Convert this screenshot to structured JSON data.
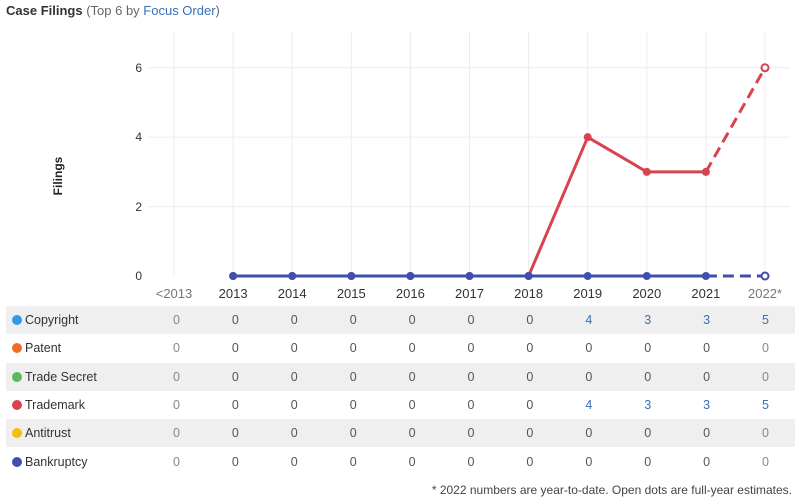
{
  "header": {
    "title": "Case Filings",
    "paren_open": "(Top 6 by ",
    "link": "Focus Order",
    "paren_close": ")"
  },
  "chart_data": {
    "type": "line",
    "ylabel": "Filings",
    "xlabel": "",
    "categories": [
      "<2013",
      "2013",
      "2014",
      "2015",
      "2016",
      "2017",
      "2018",
      "2019",
      "2020",
      "2021",
      "2022*"
    ],
    "ylim": [
      0,
      6.8
    ],
    "yticks": [
      0,
      2,
      4,
      6
    ],
    "grid": true,
    "series": [
      {
        "name": "Copyright",
        "color": "#2f9be8",
        "values": [
          0,
          0,
          0,
          0,
          0,
          0,
          0,
          4,
          3,
          3,
          5
        ]
      },
      {
        "name": "Patent",
        "color": "#ef6c2b",
        "values": [
          0,
          0,
          0,
          0,
          0,
          0,
          0,
          0,
          0,
          0,
          0
        ]
      },
      {
        "name": "Trade Secret",
        "color": "#5cb85c",
        "values": [
          0,
          0,
          0,
          0,
          0,
          0,
          0,
          0,
          0,
          0,
          0
        ]
      },
      {
        "name": "Trademark",
        "color": "#d7434f",
        "values": [
          0,
          0,
          0,
          0,
          0,
          0,
          0,
          4,
          3,
          3,
          5
        ]
      },
      {
        "name": "Antitrust",
        "color": "#f7bc12",
        "values": [
          0,
          0,
          0,
          0,
          0,
          0,
          0,
          0,
          0,
          0,
          0
        ]
      },
      {
        "name": "Bankruptcy",
        "color": "#3f4fb0",
        "values": [
          0,
          0,
          0,
          0,
          0,
          0,
          0,
          0,
          0,
          0,
          0
        ]
      }
    ],
    "plotted_lines": [
      {
        "series": "Trademark",
        "color": "#d7434f",
        "points": [
          null,
          0,
          0,
          0,
          0,
          0,
          0,
          4,
          3,
          3,
          6
        ]
      },
      {
        "series": "Bankruptcy",
        "color": "#3f4fb0",
        "points": [
          null,
          0,
          0,
          0,
          0,
          0,
          0,
          0,
          0,
          0,
          0
        ]
      }
    ]
  },
  "footnote": "* 2022 numbers are year-to-date. Open dots are full-year estimates."
}
